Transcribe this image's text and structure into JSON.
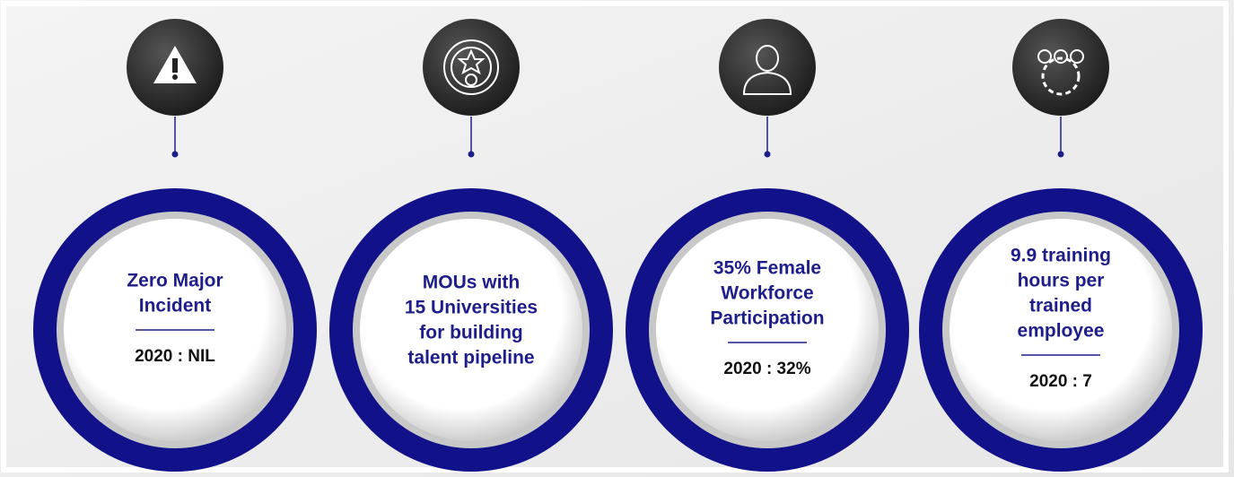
{
  "items": [
    {
      "title_lines": [
        "Zero Major",
        "Incident"
      ],
      "baseline": "2020 : NIL"
    },
    {
      "title_lines": [
        "MOUs with",
        "15 Universities",
        "for building",
        "talent pipeline"
      ]
    },
    {
      "title_lines": [
        "35% Female",
        "Workforce",
        "Participation"
      ],
      "baseline": "2020 : 32%"
    },
    {
      "title_lines": [
        "9.9 training",
        "hours per",
        "trained",
        "employee"
      ],
      "baseline": "2020 : 7"
    }
  ]
}
